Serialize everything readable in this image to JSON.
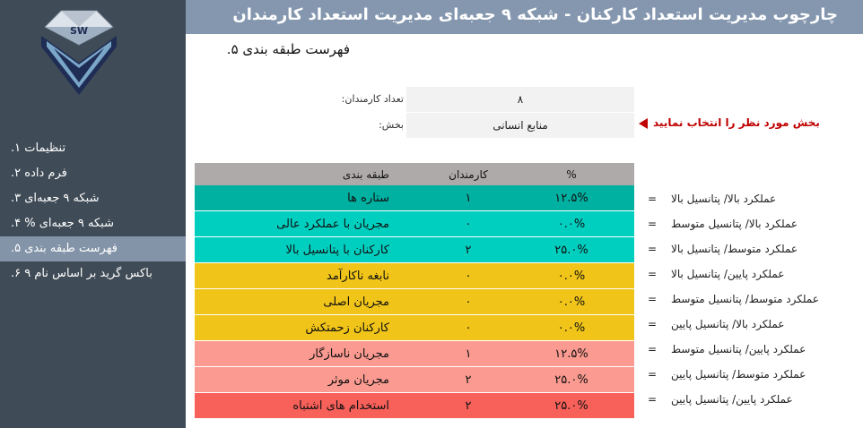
{
  "header": {
    "title": "چارچوب مدیریت استعداد کارکنان - شبکه ۹ جعبه‌ای مدیریت استعداد کارمندان"
  },
  "logo": {
    "text": "SW"
  },
  "sidebar": {
    "items": [
      {
        "label": "تنظیمات ۱.",
        "active": false
      },
      {
        "label": "فرم داده ۲.",
        "active": false
      },
      {
        "label": "شبکه ۹ جعبه‌ای ۳.",
        "active": false
      },
      {
        "label": "شبکه ۹ جعبه‌ای % ۴.",
        "active": false
      },
      {
        "label": "فهرست طبقه بندی ۵.",
        "active": true
      },
      {
        "label": "باکس گرید بر اساس نام ۹ ۶.",
        "active": false
      }
    ]
  },
  "page": {
    "title": "فهرست طبقه بندی ۵."
  },
  "info": {
    "count_label": "تعداد کارمندان:",
    "count_value": "۸",
    "dept_label": "بخش:",
    "dept_value": "منابع انسانی",
    "hint": "بخش مورد نظر را انتخاب نمایید"
  },
  "table": {
    "headers": {
      "name": "طبقه بندی",
      "count": "کارمندان",
      "pct": "%"
    },
    "rows": [
      {
        "name": "ستاره ها",
        "count": "۱",
        "pct": "۱۲.۵%",
        "color": "#00b0a0",
        "desc": "عملکرد بالا/ پتانسیل بالا"
      },
      {
        "name": "مجریان با عملکرد عالی",
        "count": "۰",
        "pct": "۰.۰%",
        "color": "#00cfc0",
        "desc": "عملکرد بالا/ پتانسیل متوسط"
      },
      {
        "name": "کارکنان با پتانسیل بالا",
        "count": "۲",
        "pct": "۲۵.۰%",
        "color": "#00cfc0",
        "desc": "عملکرد متوسط/ پتانسیل بالا"
      },
      {
        "name": "نابغه ناکارآمد",
        "count": "۰",
        "pct": "۰.۰%",
        "color": "#f0c419",
        "desc": "عملکرد پایین/ پتانسیل بالا"
      },
      {
        "name": "مجریان اصلی",
        "count": "۰",
        "pct": "۰.۰%",
        "color": "#f0c419",
        "desc": "عملکرد متوسط/ پتانسیل متوسط"
      },
      {
        "name": "کارکنان زحمتکش",
        "count": "۰",
        "pct": "۰.۰%",
        "color": "#f0c419",
        "desc": "عملکرد بالا/ پتانسیل پایین"
      },
      {
        "name": "مجریان ناسازگار",
        "count": "۱",
        "pct": "۱۲.۵%",
        "color": "#fa9a90",
        "desc": "عملکرد پایین/ پتانسیل متوسط"
      },
      {
        "name": "مجریان موثر",
        "count": "۲",
        "pct": "۲۵.۰%",
        "color": "#fa9a90",
        "desc": "عملکرد متوسط/ پتانسیل پایین"
      },
      {
        "name": "استخدام های اشتباه",
        "count": "۲",
        "pct": "۲۵.۰%",
        "color": "#f8605a",
        "desc": "عملکرد پایین/ پتانسیل پایین"
      }
    ],
    "equals": "="
  },
  "colors": {
    "sidebar": "#3f4b56",
    "header": "#8497af",
    "active": "#8394a8",
    "accent_red": "#c00000"
  }
}
